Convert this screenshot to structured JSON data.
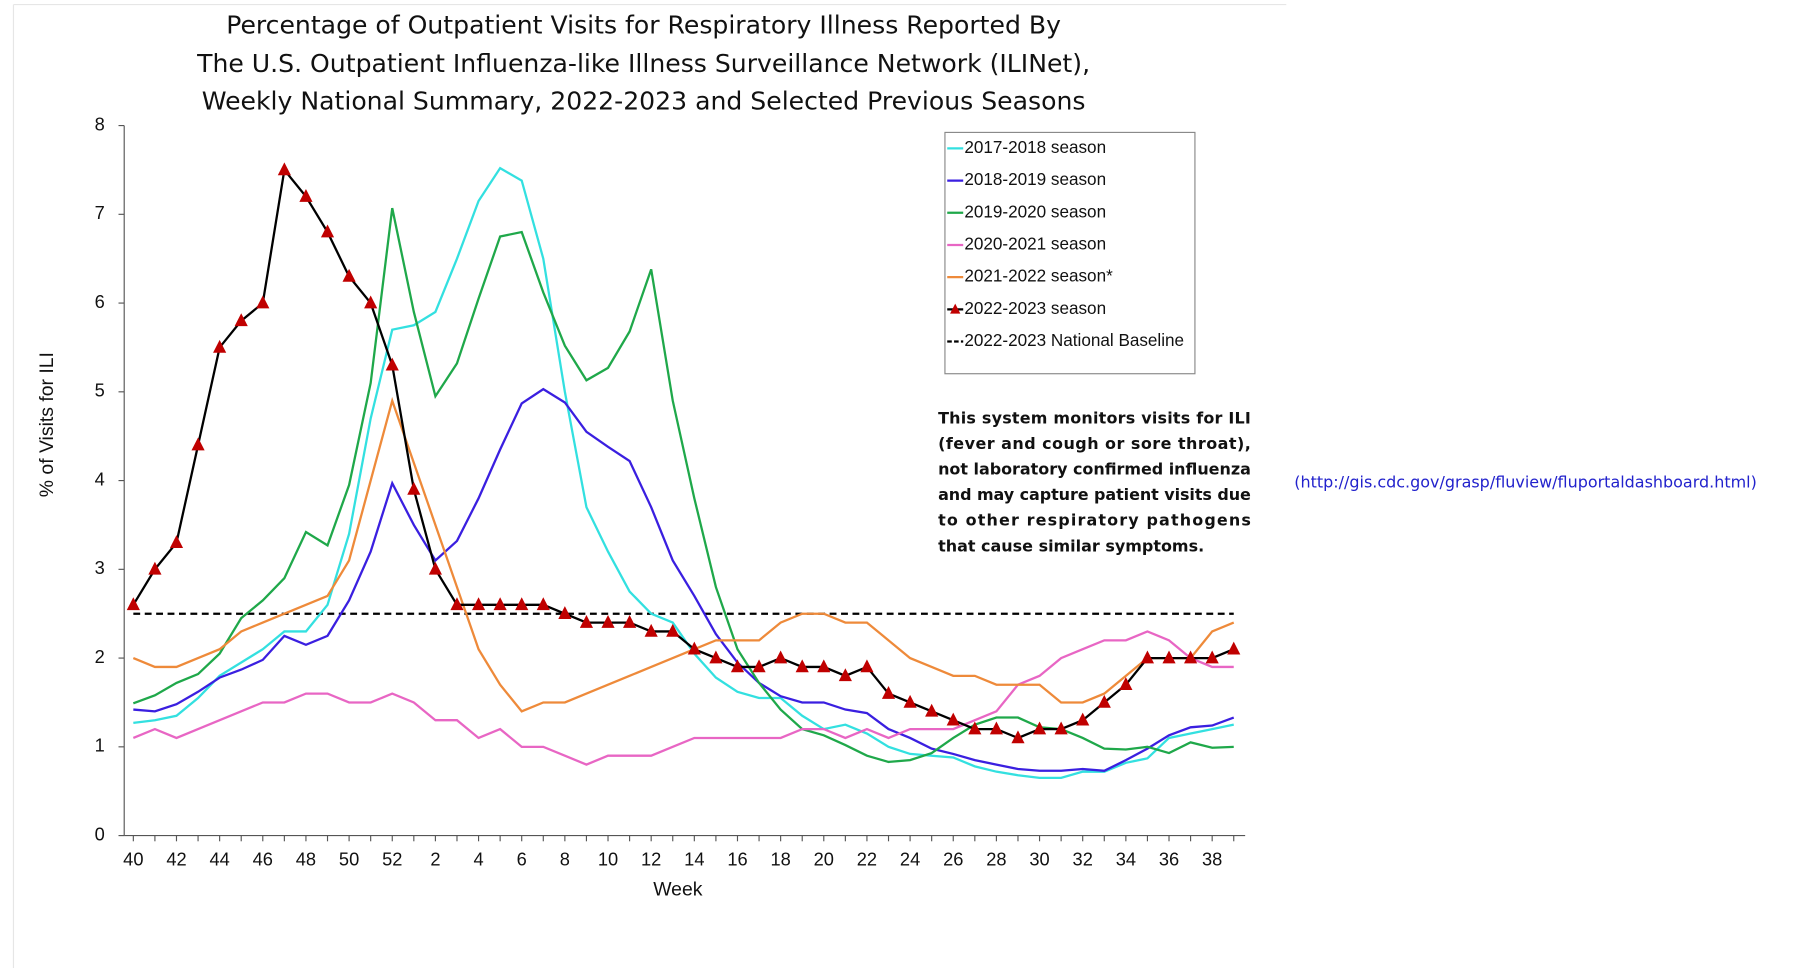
{
  "chart_data": {
    "type": "line",
    "title": [
      "Percentage of Outpatient Visits for Respiratory Illness Reported By",
      "The U.S. Outpatient Influenza-like Illness Surveillance Network (ILINet),",
      "Weekly National Summary, 2022-2023 and Selected Previous Seasons"
    ],
    "x_label": "Week",
    "y_label": "% of Visits for ILI",
    "categories": [
      "40",
      null,
      "42",
      null,
      "44",
      null,
      "46",
      null,
      "48",
      null,
      "50",
      null,
      "52",
      null,
      "2",
      null,
      "4",
      null,
      "6",
      null,
      "8",
      null,
      "10",
      null,
      "12",
      null,
      "14",
      null,
      "16",
      null,
      "18",
      null,
      "20",
      null,
      "22",
      null,
      "24",
      null,
      "26",
      null,
      "28",
      null,
      "30",
      null,
      "32",
      null,
      "34",
      null,
      "36",
      null,
      "38",
      null
    ],
    "ylim": [
      0,
      8
    ],
    "yticks": [
      0,
      1,
      2,
      3,
      4,
      5,
      6,
      7,
      8
    ],
    "series": [
      {
        "name": "2017-2018 season",
        "color": "#33e0e0",
        "values": [
          1.27,
          1.3,
          1.35,
          1.55,
          1.8,
          1.95,
          2.1,
          2.3,
          2.3,
          2.6,
          3.4,
          4.7,
          5.7,
          5.75,
          5.9,
          6.5,
          7.15,
          7.52,
          7.38,
          6.5,
          5.0,
          3.7,
          3.2,
          2.75,
          2.5,
          2.4,
          2.05,
          1.78,
          1.62,
          1.55,
          1.55,
          1.35,
          1.2,
          1.25,
          1.15,
          1.0,
          0.92,
          0.9,
          0.88,
          0.78,
          0.72,
          0.68,
          0.65,
          0.65,
          0.72,
          0.72,
          0.82,
          0.87,
          1.1,
          1.15,
          1.2,
          1.25
        ]
      },
      {
        "name": "2018-2019 season",
        "color": "#3a1fe0",
        "values": [
          1.42,
          1.4,
          1.48,
          1.62,
          1.78,
          1.87,
          1.98,
          2.25,
          2.15,
          2.25,
          2.65,
          3.2,
          3.97,
          3.5,
          3.1,
          3.32,
          3.8,
          4.35,
          4.87,
          5.03,
          4.88,
          4.55,
          4.38,
          4.22,
          3.7,
          3.1,
          2.7,
          2.27,
          1.95,
          1.72,
          1.57,
          1.5,
          1.5,
          1.42,
          1.38,
          1.2,
          1.1,
          0.98,
          0.92,
          0.85,
          0.8,
          0.75,
          0.73,
          0.73,
          0.75,
          0.73,
          0.85,
          0.98,
          1.13,
          1.22,
          1.24,
          1.33
        ]
      },
      {
        "name": "2019-2020 season",
        "color": "#1fa84a",
        "values": [
          1.49,
          1.58,
          1.72,
          1.82,
          2.05,
          2.45,
          2.65,
          2.9,
          3.42,
          3.27,
          3.95,
          5.1,
          7.07,
          5.9,
          4.95,
          5.32,
          6.05,
          6.75,
          6.8,
          6.12,
          5.52,
          5.13,
          5.27,
          5.68,
          6.38,
          4.9,
          3.8,
          2.8,
          2.1,
          1.72,
          1.42,
          1.2,
          1.13,
          1.02,
          0.9,
          0.83,
          0.85,
          0.93,
          1.1,
          1.25,
          1.33,
          1.33,
          1.22,
          1.2,
          1.1,
          0.98,
          0.97,
          1.0,
          0.93,
          1.05,
          0.99,
          1.0
        ]
      },
      {
        "name": "2020-2021 season",
        "color": "#e866c4",
        "values": [
          1.1,
          1.2,
          1.1,
          1.2,
          1.3,
          1.4,
          1.5,
          1.5,
          1.6,
          1.6,
          1.5,
          1.5,
          1.6,
          1.5,
          1.3,
          1.3,
          1.1,
          1.2,
          1.0,
          1.0,
          0.9,
          0.8,
          0.9,
          0.9,
          0.9,
          1.0,
          1.1,
          1.1,
          1.1,
          1.1,
          1.1,
          1.2,
          1.2,
          1.1,
          1.2,
          1.1,
          1.2,
          1.2,
          1.2,
          1.3,
          1.4,
          1.7,
          1.8,
          2.0,
          2.1,
          2.2,
          2.2,
          2.3,
          2.2,
          2.0,
          1.9,
          1.9
        ]
      },
      {
        "name": "2021-2022 season*",
        "color": "#ee8a3a",
        "values": [
          2.0,
          1.9,
          1.9,
          2.0,
          2.1,
          2.3,
          2.4,
          2.5,
          2.6,
          2.7,
          3.1,
          4.0,
          4.9,
          4.2,
          3.5,
          2.8,
          2.1,
          1.7,
          1.4,
          1.5,
          1.5,
          1.6,
          1.7,
          1.8,
          1.9,
          2.0,
          2.1,
          2.2,
          2.2,
          2.2,
          2.4,
          2.5,
          2.5,
          2.4,
          2.4,
          2.2,
          2.0,
          1.9,
          1.8,
          1.8,
          1.7,
          1.7,
          1.7,
          1.5,
          1.5,
          1.6,
          1.8,
          2.0,
          2.0,
          2.0,
          2.3,
          2.4
        ]
      },
      {
        "name": "2022-2023 season",
        "color": "#000000",
        "marker": "triangle",
        "marker_color": "#c00000",
        "values": [
          2.6,
          3.0,
          3.3,
          4.4,
          5.5,
          5.8,
          6.0,
          7.5,
          7.2,
          6.8,
          6.3,
          6.0,
          5.3,
          3.9,
          3.0,
          2.6,
          2.6,
          2.6,
          2.6,
          2.6,
          2.5,
          2.4,
          2.4,
          2.4,
          2.3,
          2.3,
          2.1,
          2.0,
          1.9,
          1.9,
          2.0,
          1.9,
          1.9,
          1.8,
          1.9,
          1.6,
          1.5,
          1.4,
          1.3,
          1.2,
          1.2,
          1.1,
          1.2,
          1.2,
          1.3,
          1.5,
          1.7,
          2.0,
          2.0,
          2.0,
          2.0,
          2.1
        ]
      }
    ],
    "reference_line": {
      "name": "2022-2023 National Baseline",
      "value": 2.5,
      "color": "#000000"
    },
    "legend": "upper right",
    "annotation": [
      "This system monitors visits for ILI",
      "(fever and cough or sore throat),",
      "not laboratory confirmed influenza",
      "and may capture patient visits due",
      "to other respiratory pathogens",
      "that cause similar symptoms."
    ],
    "link": "(http://gis.cdc.gov/grasp/fluview/fluportaldashboard.html)"
  }
}
